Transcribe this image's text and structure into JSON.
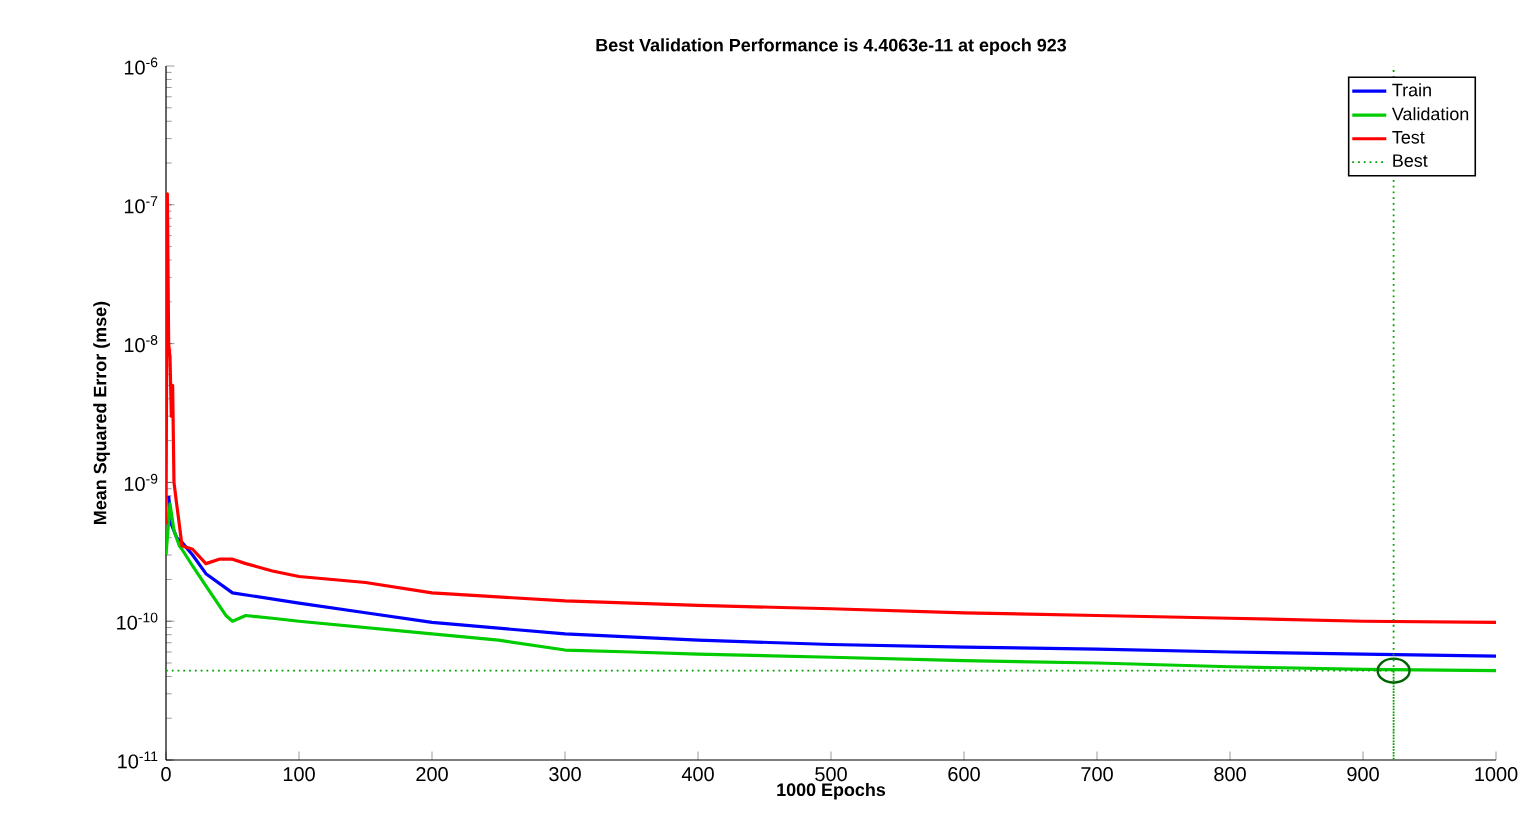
{
  "chart_data": {
    "type": "line",
    "title": "**Best Validation Performance is 4.4063e-11 at epoch 923**",
    "xlabel": "**1000 Epochs**",
    "ylabel": "**Mean Squared Error  (mse)**",
    "log": "y",
    "xlim": [
      0,
      1000
    ],
    "ylim": [
      1e-11,
      1e-06
    ],
    "xticks": [
      0,
      100,
      200,
      300,
      400,
      500,
      600,
      700,
      800,
      900,
      1000
    ],
    "yticks": [
      {
        "value": 1e-11,
        "label": "10$^{-11}$"
      },
      {
        "value": 1e-10,
        "label": "10$^{-10}$"
      },
      {
        "value": 1e-09,
        "label": "10$^{-9}$"
      },
      {
        "value": 1e-08,
        "label": "10$^{-8}$"
      },
      {
        "value": 1e-07,
        "label": "10$^{-7}$"
      },
      {
        "value": 1e-06,
        "label": "10$^{-6}$"
      }
    ],
    "grid": false,
    "legend": "top right",
    "marker": "none",
    "series": [
      {
        "name": "Train",
        "color": "#0000ff",
        "x": [
          2,
          4,
          8,
          12,
          20,
          30,
          50,
          100,
          150,
          200,
          300,
          400,
          500,
          600,
          700,
          800,
          900,
          1000
        ],
        "values": [
          8e-10,
          5e-10,
          4e-10,
          3.7e-10,
          3e-10,
          2.2e-10,
          1.6e-10,
          1.35e-10,
          1.15e-10,
          9.8e-11,
          8.1e-11,
          7.3e-11,
          6.8e-11,
          6.5e-11,
          6.3e-11,
          6e-11,
          5.8e-11,
          5.6e-11
        ]
      },
      {
        "name": "Validation",
        "color": "#00cc00",
        "x": [
          0,
          3,
          6,
          10,
          12,
          20,
          30,
          45,
          50,
          60,
          80,
          100,
          150,
          200,
          250,
          300,
          350,
          400,
          500,
          600,
          700,
          800,
          900,
          1000
        ],
        "values": [
          3e-10,
          7e-10,
          4.5e-10,
          3.5e-10,
          3.3e-10,
          2.5e-10,
          1.8e-10,
          1.1e-10,
          1e-10,
          1.1e-10,
          1.05e-10,
          1e-10,
          9e-11,
          8.1e-11,
          7.3e-11,
          6.2e-11,
          6e-11,
          5.8e-11,
          5.5e-11,
          5.2e-11,
          5e-11,
          4.7e-11,
          4.5e-11,
          4.4e-11
        ]
      },
      {
        "name": "Test",
        "color": "#ff0000",
        "x": [
          0,
          1,
          2,
          3,
          4,
          5,
          6,
          8,
          10,
          12,
          20,
          30,
          40,
          50,
          60,
          80,
          100,
          150,
          200,
          300,
          400,
          500,
          600,
          700,
          800,
          900,
          1000
        ],
        "values": [
          5e-10,
          1.2e-07,
          1e-08,
          8e-09,
          3e-09,
          5e-09,
          1e-09,
          7e-10,
          5e-10,
          3.5e-10,
          3.3e-10,
          2.6e-10,
          2.8e-10,
          2.8e-10,
          2.6e-10,
          2.3e-10,
          2.1e-10,
          1.9e-10,
          1.6e-10,
          1.4e-10,
          1.3e-10,
          1.23e-10,
          1.15e-10,
          1.1e-10,
          1.05e-10,
          1e-10,
          9.8e-11
        ]
      },
      {
        "name": "Best",
        "color": "#00a000",
        "line_style": "dotted",
        "x": [
          0,
          923,
          923,
          923
        ],
        "values": [
          4.4063e-11,
          4.4063e-11,
          1e-11,
          1e-06
        ]
      },
      {
        "type": "scatter",
        "color": "#006400",
        "marker": "circle",
        "x": [
          923
        ],
        "values": [
          4.4063e-11
        ]
      }
    ]
  }
}
